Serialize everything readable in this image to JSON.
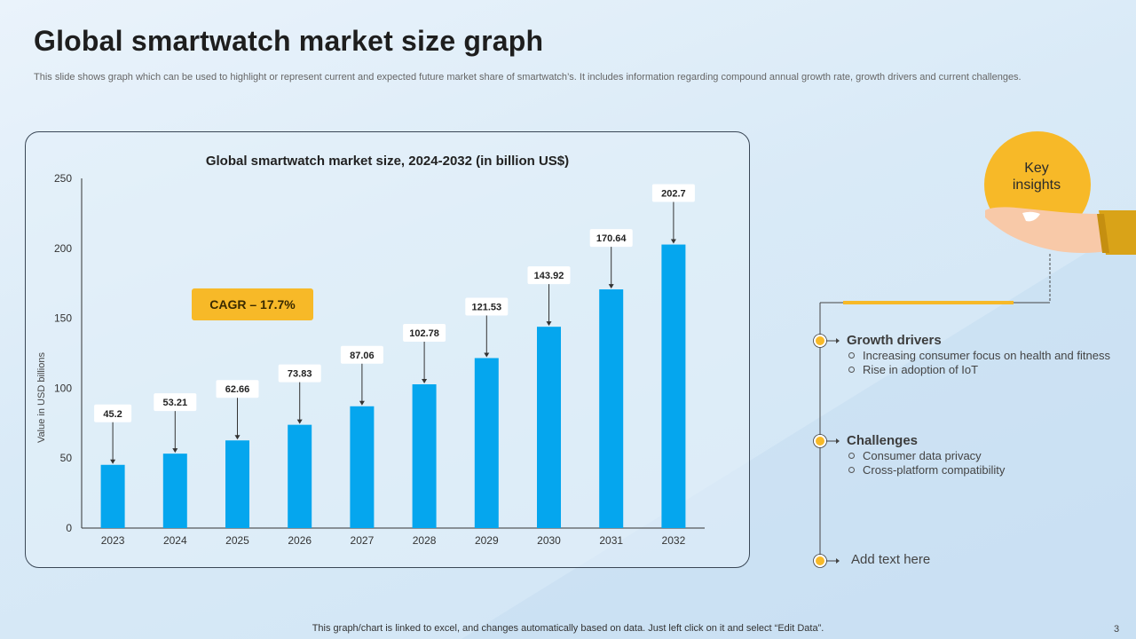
{
  "slide": {
    "title": "Global smartwatch market size graph",
    "description": "This slide shows graph which can be used to highlight or represent current and expected future market share of smartwatch’s. It includes information regarding compound annual growth rate, growth drivers and current challenges.",
    "footer_note": "This graph/chart is linked to excel,  and changes automatically based on data. Just left click on it and select “Edit Data”.",
    "page_number": "3"
  },
  "colors": {
    "bar": "#05a6ee",
    "accent": "#f7b928",
    "axis": "#333333"
  },
  "chart_data": {
    "type": "bar",
    "title": "Global smartwatch market size, 2024-2032 (in billion US$)",
    "xlabel": "",
    "ylabel": "Value in USD billions",
    "categories": [
      "2023",
      "2024",
      "2025",
      "2026",
      "2027",
      "2028",
      "2029",
      "2030",
      "2031",
      "2032"
    ],
    "values": [
      45.2,
      53.21,
      62.66,
      73.83,
      87.06,
      102.78,
      121.53,
      143.92,
      170.64,
      202.7
    ],
    "value_labels": [
      "45.2",
      "53.21",
      "62.66",
      "73.83",
      "87.06",
      "102.78",
      "121.53",
      "143.92",
      "170.64",
      "202.7"
    ],
    "ylim": [
      0,
      250
    ],
    "yticks": [
      0,
      50,
      100,
      150,
      200,
      250
    ],
    "grid": false,
    "legend": "none",
    "annotation": "CAGR – 17.7%"
  },
  "insights": {
    "label_line1": "Key",
    "label_line2": "insights",
    "sections": [
      {
        "title": "Growth drivers",
        "items": [
          "Increasing consumer focus on health and fitness",
          "Rise in adoption  of IoT"
        ]
      },
      {
        "title": "Challenges",
        "items": [
          "Consumer  data privacy",
          "Cross-platform  compatibility"
        ]
      }
    ],
    "placeholder": "Add text here"
  }
}
